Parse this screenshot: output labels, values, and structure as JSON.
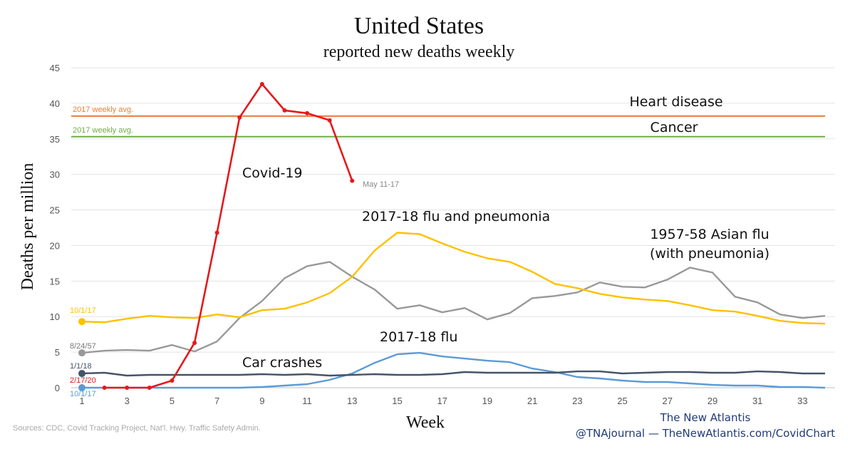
{
  "chart_data": {
    "type": "line",
    "title": "United States",
    "subtitle": "reported new deaths weekly",
    "xlabel": "Week",
    "ylabel": "Deaths per million",
    "xlim": [
      1,
      34
    ],
    "ylim": [
      0,
      45
    ],
    "x_ticks": [
      1,
      3,
      5,
      7,
      9,
      11,
      13,
      15,
      17,
      19,
      21,
      23,
      25,
      27,
      29,
      31,
      33
    ],
    "y_ticks": [
      0,
      5,
      10,
      15,
      20,
      25,
      30,
      35,
      40,
      45
    ],
    "grid": "horizontal",
    "reference_lines": [
      {
        "key": "heart",
        "label": "Heart disease",
        "note": "2017 weekly avg.",
        "value": 38.2,
        "color": "#ed7d31"
      },
      {
        "key": "cancer",
        "label": "Cancer",
        "note": "2017 weekly avg.",
        "value": 35.3,
        "color": "#70ad47"
      }
    ],
    "series": [
      {
        "key": "asian",
        "label": "1957-58 Asian flu",
        "label2": "(with pneumonia)",
        "start_label": "8/24/57",
        "color": "#999999",
        "x": [
          1,
          2,
          3,
          4,
          5,
          6,
          7,
          8,
          9,
          10,
          11,
          12,
          13,
          14,
          15,
          16,
          17,
          18,
          19,
          20,
          21,
          22,
          23,
          24,
          25,
          26,
          27,
          28,
          29,
          30,
          31,
          32,
          33,
          34
        ],
        "y": [
          4.9,
          5.2,
          5.3,
          5.2,
          6.0,
          5.1,
          6.5,
          9.8,
          12.2,
          15.4,
          17.1,
          17.7,
          15.6,
          13.8,
          11.1,
          11.6,
          10.6,
          11.2,
          9.6,
          10.5,
          12.6,
          12.9,
          13.4,
          14.8,
          14.2,
          14.1,
          15.2,
          16.9,
          16.2,
          12.8,
          12.0,
          10.3,
          9.8,
          10.1
        ]
      },
      {
        "key": "flu_pneu",
        "label": "2017-18 flu and pneumonia",
        "start_label": "10/1/17",
        "color": "#ffc000",
        "x": [
          1,
          2,
          3,
          4,
          5,
          6,
          7,
          8,
          9,
          10,
          11,
          12,
          13,
          14,
          15,
          16,
          17,
          18,
          19,
          20,
          21,
          22,
          23,
          24,
          25,
          26,
          27,
          28,
          29,
          30,
          31,
          32,
          33,
          34
        ],
        "y": [
          9.3,
          9.2,
          9.7,
          10.1,
          9.9,
          9.8,
          10.3,
          9.9,
          10.9,
          11.1,
          12.0,
          13.3,
          15.6,
          19.3,
          21.8,
          21.6,
          20.3,
          19.1,
          18.2,
          17.7,
          16.3,
          14.6,
          14.0,
          13.2,
          12.7,
          12.4,
          12.2,
          11.6,
          10.9,
          10.7,
          10.1,
          9.4,
          9.1,
          9.0
        ]
      },
      {
        "key": "flu",
        "label": "2017-18 flu",
        "start_label": "10/1/17",
        "color": "#5b9bd5",
        "x": [
          1,
          2,
          3,
          4,
          5,
          6,
          7,
          8,
          9,
          10,
          11,
          12,
          13,
          14,
          15,
          16,
          17,
          18,
          19,
          20,
          21,
          22,
          23,
          24,
          25,
          26,
          27,
          28,
          29,
          30,
          31,
          32,
          33,
          34
        ],
        "y": [
          0.0,
          0.0,
          0.0,
          0.0,
          0.0,
          0.0,
          0.0,
          0.0,
          0.1,
          0.3,
          0.5,
          1.1,
          2.0,
          3.5,
          4.7,
          4.9,
          4.4,
          4.1,
          3.8,
          3.6,
          2.7,
          2.2,
          1.5,
          1.3,
          1.0,
          0.8,
          0.8,
          0.6,
          0.4,
          0.3,
          0.3,
          0.1,
          0.1,
          0.0
        ]
      },
      {
        "key": "car",
        "label": "Car crashes",
        "start_label": "1/1/18",
        "color": "#44546a",
        "x": [
          1,
          2,
          3,
          4,
          5,
          6,
          7,
          8,
          9,
          10,
          11,
          12,
          13,
          14,
          15,
          16,
          17,
          18,
          19,
          20,
          21,
          22,
          23,
          24,
          25,
          26,
          27,
          28,
          29,
          30,
          31,
          32,
          33,
          34
        ],
        "y": [
          2.0,
          2.1,
          1.7,
          1.8,
          1.8,
          1.8,
          1.8,
          1.8,
          1.9,
          1.8,
          1.9,
          1.7,
          1.8,
          1.9,
          1.8,
          1.8,
          1.9,
          2.2,
          2.1,
          2.1,
          2.1,
          2.1,
          2.3,
          2.3,
          2.0,
          2.1,
          2.2,
          2.2,
          2.1,
          2.1,
          2.3,
          2.2,
          2.0,
          2.0
        ]
      },
      {
        "key": "covid",
        "label": "Covid-19",
        "start_label": "2/17/20",
        "end_label": "May 11-17",
        "color": "#e31a1c",
        "x": [
          2,
          3,
          4,
          5,
          6,
          7,
          8,
          9,
          10,
          11,
          12,
          13
        ],
        "y": [
          0.0,
          0.0,
          0.0,
          1.0,
          6.3,
          21.8,
          38.0,
          42.7,
          39.0,
          38.6,
          37.6,
          29.1
        ]
      }
    ]
  },
  "footer": {
    "source": "Sources: CDC, Covid Tracking Project, Nat'l. Hwy. Traffic Safety Admin.",
    "publisher": "The New Atlantis",
    "handle": "@TNAjournal — TheNewAtlantis.com/CovidChart"
  }
}
